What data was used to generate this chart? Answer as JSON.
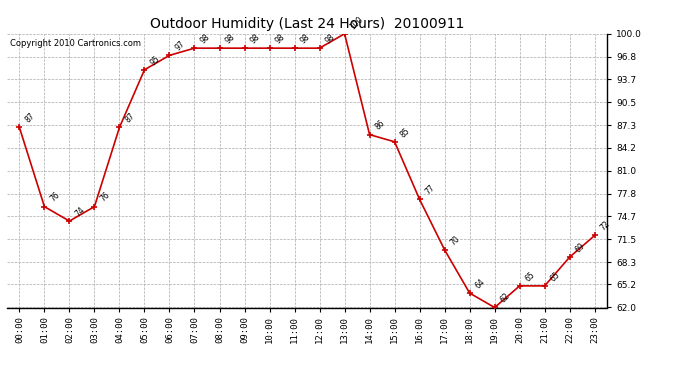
{
  "title": "Outdoor Humidity (Last 24 Hours)  20100911",
  "copyright": "Copyright 2010 Cartronics.com",
  "hours": [
    "00:00",
    "01:00",
    "02:00",
    "03:00",
    "04:00",
    "05:00",
    "06:00",
    "07:00",
    "08:00",
    "09:00",
    "10:00",
    "11:00",
    "12:00",
    "13:00",
    "14:00",
    "15:00",
    "16:00",
    "17:00",
    "18:00",
    "19:00",
    "20:00",
    "21:00",
    "22:00",
    "23:00"
  ],
  "values": [
    87,
    76,
    74,
    76,
    87,
    95,
    97,
    98,
    98,
    98,
    98,
    98,
    98,
    100,
    86,
    85,
    77,
    70,
    64,
    62,
    65,
    65,
    69,
    72
  ],
  "line_color": "#cc0000",
  "marker_color": "#cc0000",
  "bg_color": "#ffffff",
  "grid_color": "#aaaaaa",
  "ylim_min": 62.0,
  "ylim_max": 100.0,
  "yticks": [
    62.0,
    65.2,
    68.3,
    71.5,
    74.7,
    77.8,
    81.0,
    84.2,
    87.3,
    90.5,
    93.7,
    96.8,
    100.0
  ],
  "title_fontsize": 10,
  "label_fontsize": 5.5,
  "tick_fontsize": 6.5,
  "copyright_fontsize": 6
}
